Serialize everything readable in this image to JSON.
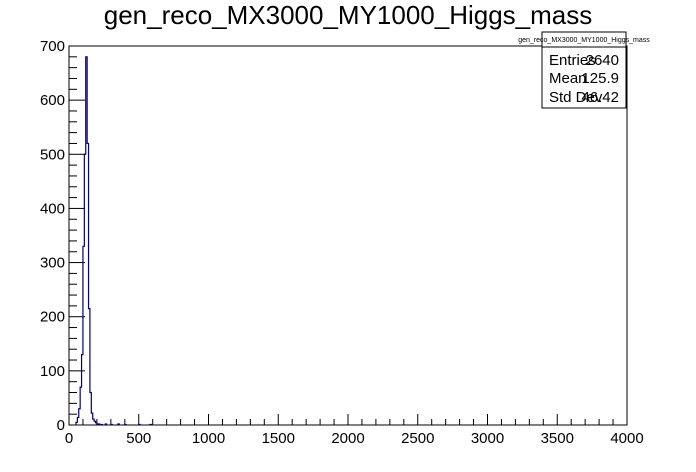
{
  "chart_data": {
    "type": "bar",
    "title": "gen_reco_MX3000_MY1000_Higgs_mass",
    "xlabel": "",
    "ylabel": "",
    "xlim": [
      0,
      4000
    ],
    "ylim": [
      0,
      700
    ],
    "x_ticks": [
      "0",
      "500",
      "1000",
      "1500",
      "2000",
      "2500",
      "3000",
      "3500",
      "4000"
    ],
    "y_ticks": [
      "0",
      "100",
      "200",
      "300",
      "400",
      "500",
      "600",
      "700"
    ],
    "grid": false,
    "legend": "none",
    "bin_width": 10,
    "series": [
      {
        "line_color": "#00007f",
        "bins": [
          {
            "x": 50,
            "y": 5
          },
          {
            "x": 60,
            "y": 14
          },
          {
            "x": 70,
            "y": 30
          },
          {
            "x": 80,
            "y": 70
          },
          {
            "x": 90,
            "y": 130
          },
          {
            "x": 100,
            "y": 330
          },
          {
            "x": 110,
            "y": 500
          },
          {
            "x": 120,
            "y": 680
          },
          {
            "x": 130,
            "y": 520
          },
          {
            "x": 140,
            "y": 215
          },
          {
            "x": 150,
            "y": 60
          },
          {
            "x": 160,
            "y": 22
          },
          {
            "x": 170,
            "y": 11
          },
          {
            "x": 180,
            "y": 7
          },
          {
            "x": 190,
            "y": 4
          },
          {
            "x": 200,
            "y": 2
          },
          {
            "x": 210,
            "y": 2
          },
          {
            "x": 230,
            "y": 1
          },
          {
            "x": 260,
            "y": 2
          },
          {
            "x": 300,
            "y": 1
          },
          {
            "x": 350,
            "y": 2
          },
          {
            "x": 400,
            "y": 1
          },
          {
            "x": 500,
            "y": 1
          },
          {
            "x": 580,
            "y": 1
          }
        ]
      }
    ]
  },
  "stats_box": {
    "title": "gen_reco_MX3000_MY1000_Higgs_mass",
    "rows": [
      {
        "label": "Entries",
        "value": "2640"
      },
      {
        "label": "Mean",
        "value": "125.9"
      },
      {
        "label": "Std Dev",
        "value": "46.42"
      }
    ]
  }
}
